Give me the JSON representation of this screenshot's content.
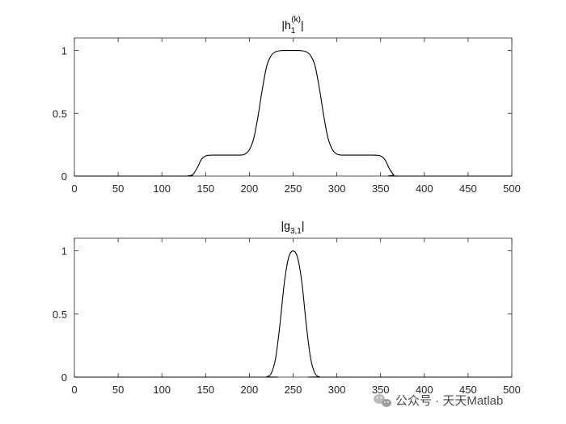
{
  "chart_data": [
    {
      "type": "line",
      "title": {
        "prefix": "|h",
        "subscript": "1",
        "superscript": "(k)",
        "suffix": "|"
      },
      "xlim": [
        0,
        500
      ],
      "ylim": [
        0,
        1.1
      ],
      "xticks": [
        0,
        50,
        100,
        150,
        200,
        250,
        300,
        350,
        400,
        450,
        500
      ],
      "yticks": [
        0,
        0.5,
        1
      ],
      "ytick_labels": [
        "0",
        "0.5",
        "1"
      ],
      "grid": false,
      "color": "#000000",
      "x": [
        0,
        125,
        130,
        135,
        140,
        145,
        150,
        155,
        160,
        170,
        180,
        190,
        195,
        200,
        205,
        210,
        215,
        220,
        225,
        230,
        235,
        240,
        245,
        250,
        255,
        260,
        265,
        270,
        275,
        280,
        285,
        290,
        295,
        300,
        305,
        310,
        320,
        330,
        340,
        345,
        350,
        355,
        360,
        365,
        370,
        500
      ],
      "y": [
        0,
        0,
        0.002,
        0.01,
        0.06,
        0.13,
        0.16,
        0.166,
        0.167,
        0.167,
        0.167,
        0.167,
        0.175,
        0.21,
        0.3,
        0.48,
        0.7,
        0.88,
        0.96,
        0.99,
        0.998,
        1,
        1,
        1,
        1,
        0.998,
        0.99,
        0.96,
        0.88,
        0.7,
        0.48,
        0.3,
        0.21,
        0.175,
        0.167,
        0.167,
        0.167,
        0.167,
        0.167,
        0.166,
        0.16,
        0.13,
        0.06,
        0.01,
        0,
        0
      ]
    },
    {
      "type": "line",
      "title": {
        "prefix": "|g",
        "subscript": "3,1",
        "superscript": "",
        "suffix": "|"
      },
      "xlim": [
        0,
        500
      ],
      "ylim": [
        0,
        1.1
      ],
      "xticks": [
        0,
        50,
        100,
        150,
        200,
        250,
        300,
        350,
        400,
        450,
        500
      ],
      "yticks": [
        0,
        0.5,
        1
      ],
      "ytick_labels": [
        "0",
        "0.5",
        "1"
      ],
      "grid": false,
      "color": "#000000",
      "x": [
        0,
        215,
        220,
        225,
        230,
        235,
        240,
        245,
        250,
        255,
        260,
        265,
        270,
        275,
        280,
        285,
        500
      ],
      "y": [
        0,
        0,
        0.003,
        0.03,
        0.15,
        0.42,
        0.75,
        0.95,
        1,
        0.95,
        0.75,
        0.42,
        0.15,
        0.03,
        0.003,
        0,
        0
      ]
    }
  ],
  "watermark": {
    "text": "公众号 · 天天Matlab",
    "icon": "wechat-icon",
    "color": "#4a4a4a"
  }
}
